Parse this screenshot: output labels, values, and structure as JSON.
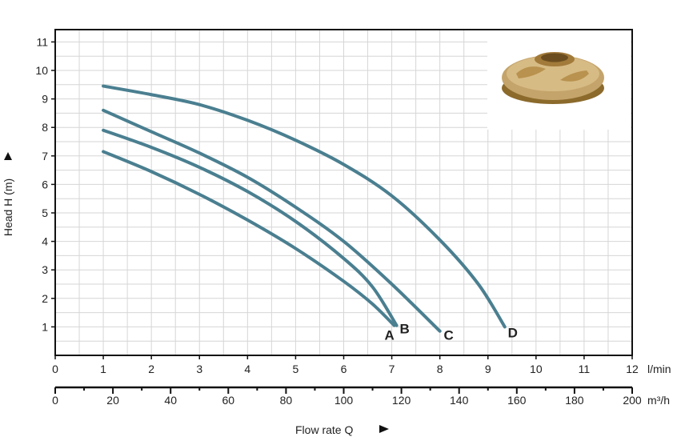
{
  "chart_data": {
    "type": "line",
    "title": "",
    "xlabel": "Flow rate Q",
    "ylabel": "Head H (m)",
    "xlim": [
      0,
      12
    ],
    "ylim": [
      0,
      11.5
    ],
    "x_unit": "l/min",
    "x2_unit": "m³/h",
    "x_ticks": [
      "0",
      "1",
      "2",
      "3",
      "4",
      "5",
      "6",
      "7",
      "8",
      "9",
      "10",
      "11",
      "12"
    ],
    "x2_ticks": [
      "0",
      "20",
      "40",
      "60",
      "80",
      "100",
      "120",
      "140",
      "160",
      "180",
      "200"
    ],
    "y_ticks": [
      "1",
      "2",
      "3",
      "4",
      "5",
      "6",
      "7",
      "8",
      "9",
      "10",
      "11"
    ],
    "grid": true,
    "colors": {
      "curve": "#4a7f90",
      "grid": "#d6d6d6",
      "axis": "#111111"
    },
    "series": [
      {
        "name": "A",
        "x": [
          1.0,
          2.0,
          3.0,
          4.0,
          5.0,
          6.0,
          6.6,
          7.05
        ],
        "y": [
          7.15,
          6.45,
          5.65,
          4.75,
          3.75,
          2.6,
          1.8,
          1.05
        ]
      },
      {
        "name": "B",
        "x": [
          1.0,
          2.0,
          3.0,
          4.0,
          5.0,
          6.0,
          6.6,
          7.1
        ],
        "y": [
          7.9,
          7.3,
          6.6,
          5.75,
          4.7,
          3.4,
          2.4,
          1.05
        ]
      },
      {
        "name": "C",
        "x": [
          1.0,
          2.0,
          3.0,
          4.0,
          5.0,
          6.0,
          7.0,
          8.0
        ],
        "y": [
          8.6,
          7.85,
          7.1,
          6.25,
          5.2,
          4.0,
          2.5,
          0.85
        ]
      },
      {
        "name": "D",
        "x": [
          1.0,
          2.0,
          3.0,
          4.0,
          5.0,
          6.0,
          7.0,
          8.0,
          8.8,
          9.35
        ],
        "y": [
          9.45,
          9.15,
          8.8,
          8.25,
          7.55,
          6.7,
          5.6,
          4.05,
          2.5,
          1.0
        ]
      }
    ]
  },
  "image": {
    "icon": "impeller-photo-icon"
  }
}
